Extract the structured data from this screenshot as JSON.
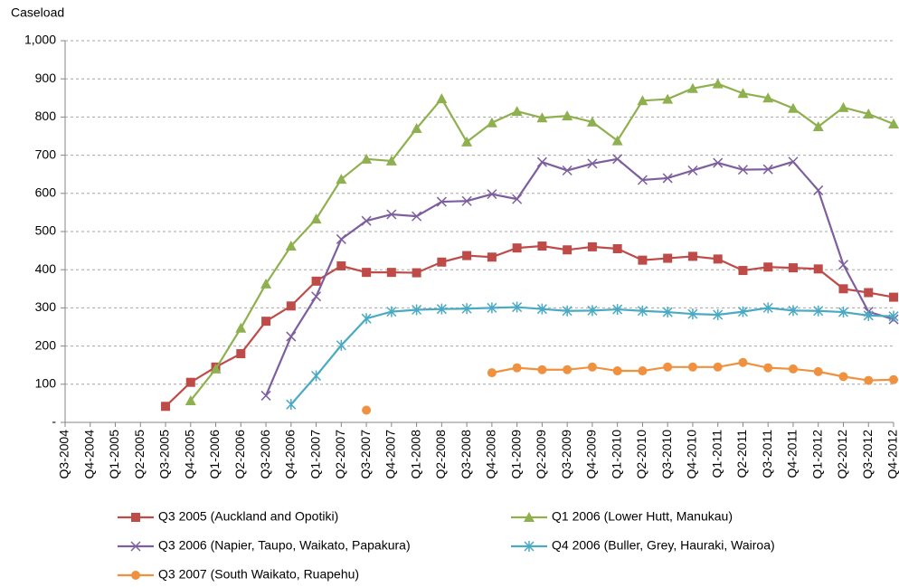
{
  "chart_data": {
    "type": "line",
    "y_label": "Caseload",
    "categories": [
      "Q3-2004",
      "Q4-2004",
      "Q1-2005",
      "Q2-2005",
      "Q3-2005",
      "Q4-2005",
      "Q1-2006",
      "Q2-2006",
      "Q3-2006",
      "Q4-2006",
      "Q1-2007",
      "Q2-2007",
      "Q3-2007",
      "Q4-2007",
      "Q1-2008",
      "Q2-2008",
      "Q3-2008",
      "Q4-2008",
      "Q1-2009",
      "Q2-2009",
      "Q3-2009",
      "Q4-2009",
      "Q1-2010",
      "Q2-2010",
      "Q3-2010",
      "Q4-2010",
      "Q1-2011",
      "Q2-2011",
      "Q3-2011",
      "Q4-2011",
      "Q1-2012",
      "Q2-2012",
      "Q3-2012",
      "Q4-2012"
    ],
    "series": [
      {
        "name": "Q3 2005 (Auckland and Opotiki)",
        "color": "#be4b48",
        "marker": "square",
        "values": [
          null,
          null,
          null,
          null,
          42,
          105,
          145,
          180,
          265,
          305,
          370,
          410,
          393,
          393,
          392,
          420,
          437,
          433,
          457,
          462,
          452,
          460,
          455,
          425,
          430,
          435,
          428,
          398,
          407,
          405,
          402,
          350,
          340,
          328
        ]
      },
      {
        "name": "Q1 2006 (Lower Hutt, Manukau)",
        "color": "#8fb04e",
        "marker": "triangle",
        "values": [
          null,
          null,
          null,
          null,
          null,
          57,
          140,
          247,
          363,
          462,
          533,
          637,
          690,
          685,
          770,
          848,
          735,
          785,
          815,
          798,
          803,
          787,
          738,
          843,
          847,
          875,
          887,
          862,
          850,
          823,
          775,
          825,
          808,
          782
        ]
      },
      {
        "name": "Q3 2006 (Napier, Taupo, Waikato, Papakura)",
        "color": "#7d5fa0",
        "marker": "x",
        "values": [
          null,
          null,
          null,
          null,
          null,
          null,
          null,
          null,
          70,
          225,
          330,
          480,
          528,
          545,
          540,
          578,
          580,
          598,
          585,
          682,
          660,
          678,
          690,
          635,
          640,
          660,
          680,
          662,
          663,
          683,
          608,
          413,
          290,
          270
        ]
      },
      {
        "name": "Q4 2006 (Buller, Grey, Hauraki, Wairoa)",
        "color": "#4aaac4",
        "marker": "star",
        "values": [
          null,
          null,
          null,
          null,
          null,
          null,
          null,
          null,
          null,
          47,
          122,
          202,
          272,
          290,
          295,
          297,
          298,
          300,
          302,
          297,
          292,
          293,
          296,
          292,
          289,
          284,
          282,
          290,
          300,
          293,
          292,
          289,
          280,
          278
        ]
      },
      {
        "name": "Q3 2007 (South Waikato, Ruapehu)",
        "color": "#f0913f",
        "marker": "circle",
        "values": [
          null,
          null,
          null,
          null,
          null,
          null,
          null,
          null,
          null,
          null,
          null,
          null,
          32,
          null,
          null,
          null,
          null,
          130,
          143,
          138,
          138,
          145,
          135,
          135,
          145,
          145,
          145,
          157,
          143,
          140,
          133,
          120,
          110,
          112
        ]
      }
    ],
    "ylim": [
      0,
      1000
    ],
    "yticks": [
      {
        "value": 0,
        "label": "-"
      },
      100,
      200,
      300,
      400,
      500,
      600,
      700,
      800,
      900,
      {
        "value": 1000,
        "label": "1,000"
      }
    ],
    "grid": true
  }
}
